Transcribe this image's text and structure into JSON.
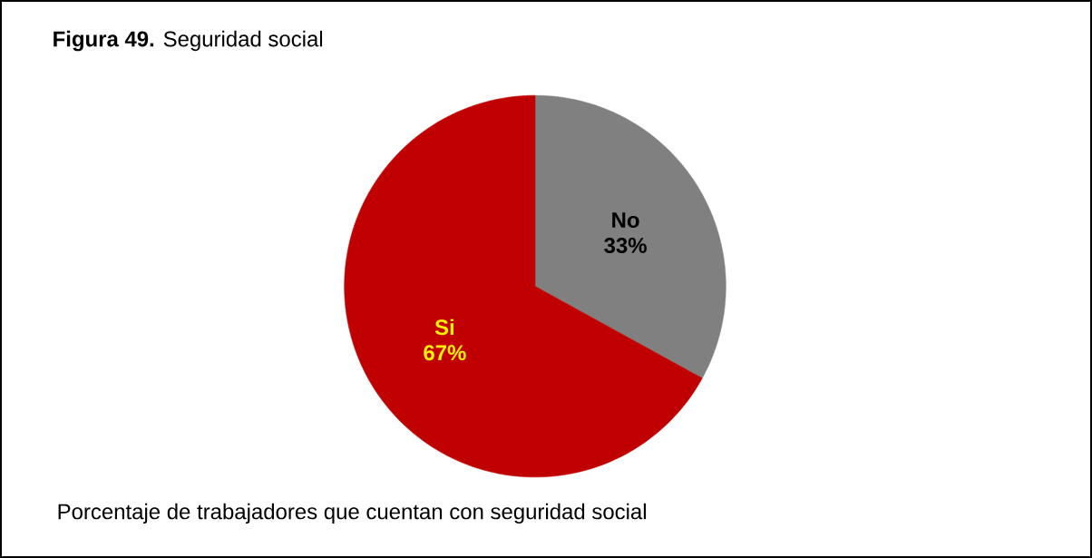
{
  "chart_data": {
    "type": "pie",
    "title": "**Figura 49.** Seguridad social",
    "categories": [
      "No",
      "Si"
    ],
    "values": [
      33,
      67
    ],
    "colors": [
      "#808080",
      "#c00000"
    ],
    "value_labels": [
      "33%",
      "67%"
    ],
    "annotations": [
      "Porcentaje de trabajadores que cuentan con seguridad social"
    ]
  }
}
